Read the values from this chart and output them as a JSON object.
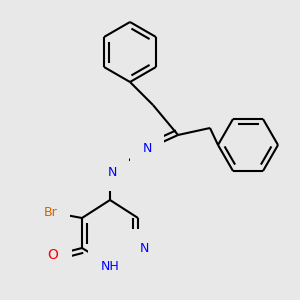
{
  "background_color": "#e8e8e8",
  "bond_color": "#000000",
  "bond_width": 1.5,
  "atom_colors": {
    "C": "#000000",
    "H": "#4a9e6b",
    "N": "#0000ff",
    "O": "#ff0000",
    "Br": "#cc6600"
  },
  "font_size": 9,
  "figsize": [
    3.0,
    3.0
  ],
  "dpi": 100,
  "xlim": [
    0,
    300
  ],
  "ylim": [
    0,
    300
  ]
}
